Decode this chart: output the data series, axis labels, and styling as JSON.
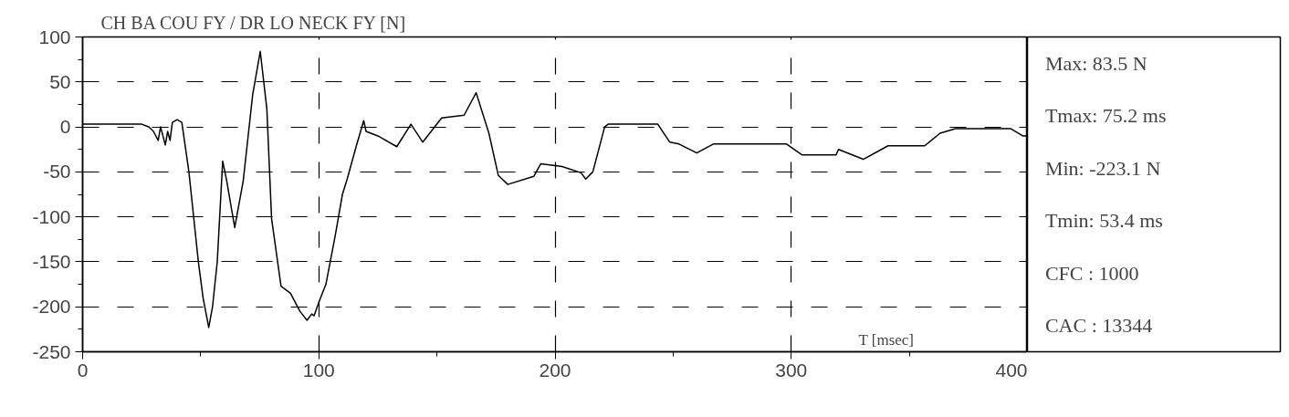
{
  "chart_data": {
    "type": "line",
    "title": "CH BA COU FY / DR LO NECK FY [N]",
    "xlabel": "T [msec]",
    "x": [
      0,
      25,
      28,
      30,
      32,
      33,
      35,
      36,
      37,
      38,
      40,
      42,
      45,
      47,
      49,
      51,
      53.4,
      55,
      57,
      59.3,
      61,
      64.4,
      68,
      72,
      75.2,
      78,
      80,
      84,
      88,
      92,
      95,
      97,
      98,
      100,
      103,
      107,
      110,
      112,
      116,
      119,
      120,
      125,
      133,
      139,
      144,
      152,
      161.5,
      166.6,
      172,
      176,
      180,
      191,
      194,
      203,
      211,
      213,
      216,
      221,
      222.5,
      243.5,
      248.6,
      252.5,
      260,
      267,
      298,
      304.5,
      319,
      320,
      330.5,
      341,
      356.5,
      363,
      369.5,
      393,
      398,
      400
    ],
    "series": [
      {
        "color": "#000000",
        "values": [
          3,
          3,
          0,
          -5,
          -15,
          0,
          -20,
          -5,
          -15,
          5,
          8,
          5,
          -50,
          -100,
          -150,
          -190,
          -223,
          -200,
          -150,
          -38,
          -60,
          -112,
          -60,
          36,
          84,
          20,
          -102,
          -177,
          -185,
          -205,
          -215,
          -208,
          -210,
          -195,
          -175,
          -120,
          -75,
          -58,
          -20,
          7,
          -5,
          -10,
          -22,
          3,
          -17,
          10,
          13,
          38,
          -7,
          -54,
          -64,
          -55,
          -41,
          -44,
          -51,
          -58,
          -50,
          0,
          3,
          3,
          -17,
          -19,
          -29,
          -19,
          -19,
          -31,
          -31,
          -25,
          -36,
          -21,
          -21,
          -7,
          -2,
          -2,
          -10,
          -10
        ]
      }
    ],
    "xlim": [
      0,
      400
    ],
    "ylim": [
      -250,
      100
    ],
    "xticks": [
      0,
      100,
      200,
      300,
      400
    ],
    "yticks": [
      -250,
      -200,
      -150,
      -100,
      -50,
      0,
      50,
      100
    ],
    "grid": true,
    "line_style": "solid",
    "marker": "none",
    "annotations": [
      "Max:   83.5 N",
      "Tmax:  75.2 ms",
      "Min: -223.1 N",
      "Tmin:  53.4 ms",
      "CFC : 1000",
      "CAC : 13344"
    ]
  }
}
